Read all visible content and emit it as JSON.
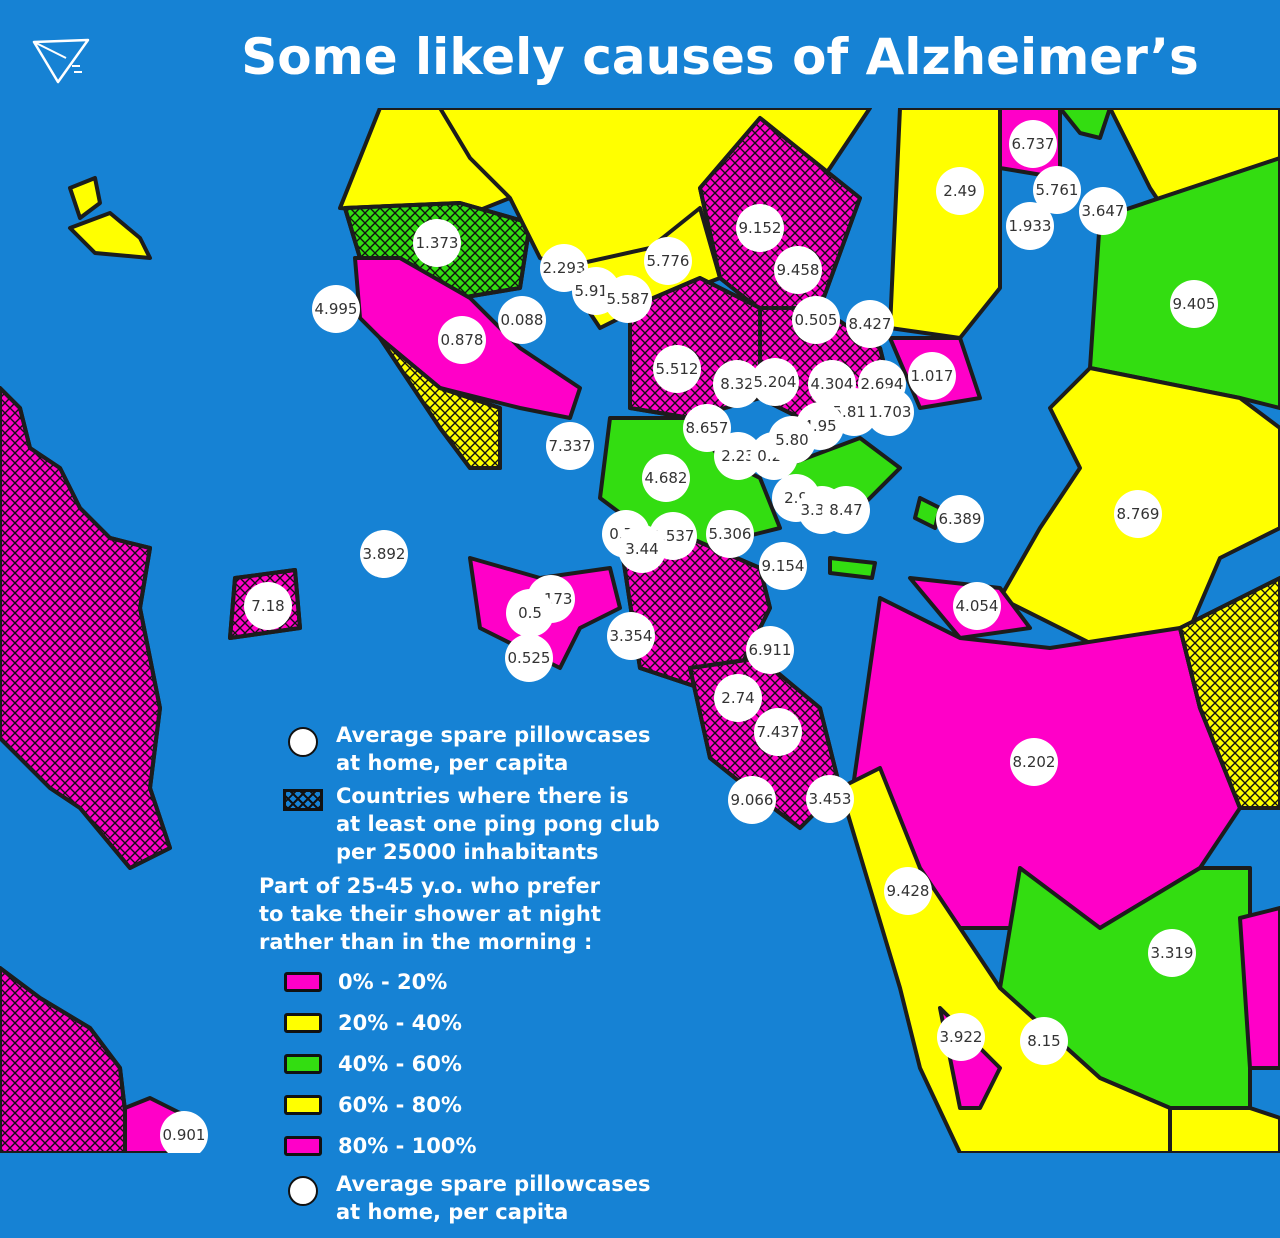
{
  "title": "Some likely causes of Alzheimer’s",
  "colors": {
    "ocean": "#1682d4",
    "magenta": "#ff00c8",
    "yellow": "#ffff00",
    "green": "#33dd11",
    "border": "#1c1c1c"
  },
  "legend": {
    "pillow_top": [
      "Average spare pillowcases",
      "at home, per capita"
    ],
    "pingpong": [
      "Countries where there is",
      "at least one ping pong club",
      "per 25000 inhabitants"
    ],
    "shower": [
      "Part of 25-45 y.o. who prefer",
      "to take their shower at night",
      "rather than in the morning :"
    ],
    "ranges": [
      {
        "label": "0% - 20%",
        "color": "#ff00c8"
      },
      {
        "label": "20% - 40%",
        "color": "#ffff00"
      },
      {
        "label": "40% - 60%",
        "color": "#33dd11"
      },
      {
        "label": "60% - 80%",
        "color": "#ffff00"
      },
      {
        "label": "80% - 100%",
        "color": "#ff00c8"
      }
    ],
    "pillow_bottom": [
      "Average spare pillowcases",
      "at home, per capita"
    ]
  },
  "bubbles": [
    "1.373",
    "4.995",
    "0.878",
    "0.088",
    "2.293",
    "5.913",
    "5.587",
    "5.776",
    "9.152",
    "9.458",
    "0.505",
    "8.427",
    "6.737",
    "5.761",
    "1.933",
    "3.647",
    "2.49",
    "9.405",
    "5.512",
    "8.32",
    "5.204",
    "4.304",
    "2.694",
    "1.017",
    "5.811",
    "1.703",
    "7.337",
    "8.657",
    "4.95",
    "2.23",
    "0.27",
    "5.80",
    "4.682",
    "2.9",
    "3.378",
    "8.47",
    "6.389",
    "8.769",
    "0.71",
    "1.537",
    "3.44",
    "5.306",
    "9.154",
    "3.892",
    "7.18",
    "6.173",
    "0.5",
    "0.525",
    "3.354",
    "4.054",
    "6.911",
    "2.74",
    "7.437",
    "9.066",
    "3.453",
    "8.202",
    "9.428",
    "3.319",
    "3.922",
    "8.15",
    "0.901"
  ]
}
